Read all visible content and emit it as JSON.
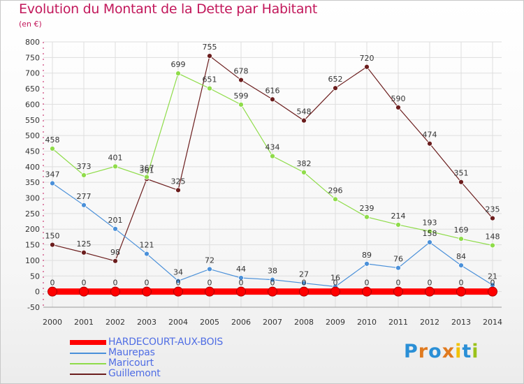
{
  "title": "Evolution du Montant de la Dette par Habitant",
  "subtitle": "(en €)",
  "logo": {
    "text": "Proxiti",
    "colors": [
      "#2a8fd6",
      "#e07a1f",
      "#2a8fd6",
      "#e07a1f",
      "#f2c200",
      "#2a8fd6",
      "#9ac21b"
    ]
  },
  "chart_data": {
    "type": "line",
    "x": [
      2000,
      2001,
      2002,
      2003,
      2004,
      2005,
      2006,
      2007,
      2008,
      2009,
      2010,
      2011,
      2012,
      2013,
      2014
    ],
    "ylim": [
      -50,
      800
    ],
    "yticks": [
      -50,
      0,
      50,
      100,
      150,
      200,
      250,
      300,
      350,
      400,
      450,
      500,
      550,
      600,
      650,
      700,
      750,
      800
    ],
    "grid": true,
    "legend_position": "bottom-left",
    "series": [
      {
        "name": "HARDECOURT-AUX-BOIS",
        "color": "#ff0000",
        "values": [
          0,
          0,
          0,
          0,
          0,
          0,
          0,
          0,
          0,
          0,
          0,
          0,
          0,
          0,
          0
        ]
      },
      {
        "name": "Maurepas",
        "color": "#4a90d9",
        "values": [
          347,
          277,
          201,
          121,
          34,
          72,
          44,
          38,
          27,
          16,
          89,
          76,
          158,
          84,
          21
        ]
      },
      {
        "name": "Maricourt",
        "color": "#8fdc4a",
        "values": [
          458,
          373,
          401,
          367,
          699,
          651,
          599,
          434,
          382,
          296,
          239,
          214,
          193,
          169,
          148
        ]
      },
      {
        "name": "Guillemont",
        "color": "#6b1d1d",
        "values": [
          150,
          125,
          98,
          361,
          325,
          755,
          678,
          616,
          548,
          652,
          720,
          590,
          474,
          351,
          235
        ]
      }
    ]
  }
}
